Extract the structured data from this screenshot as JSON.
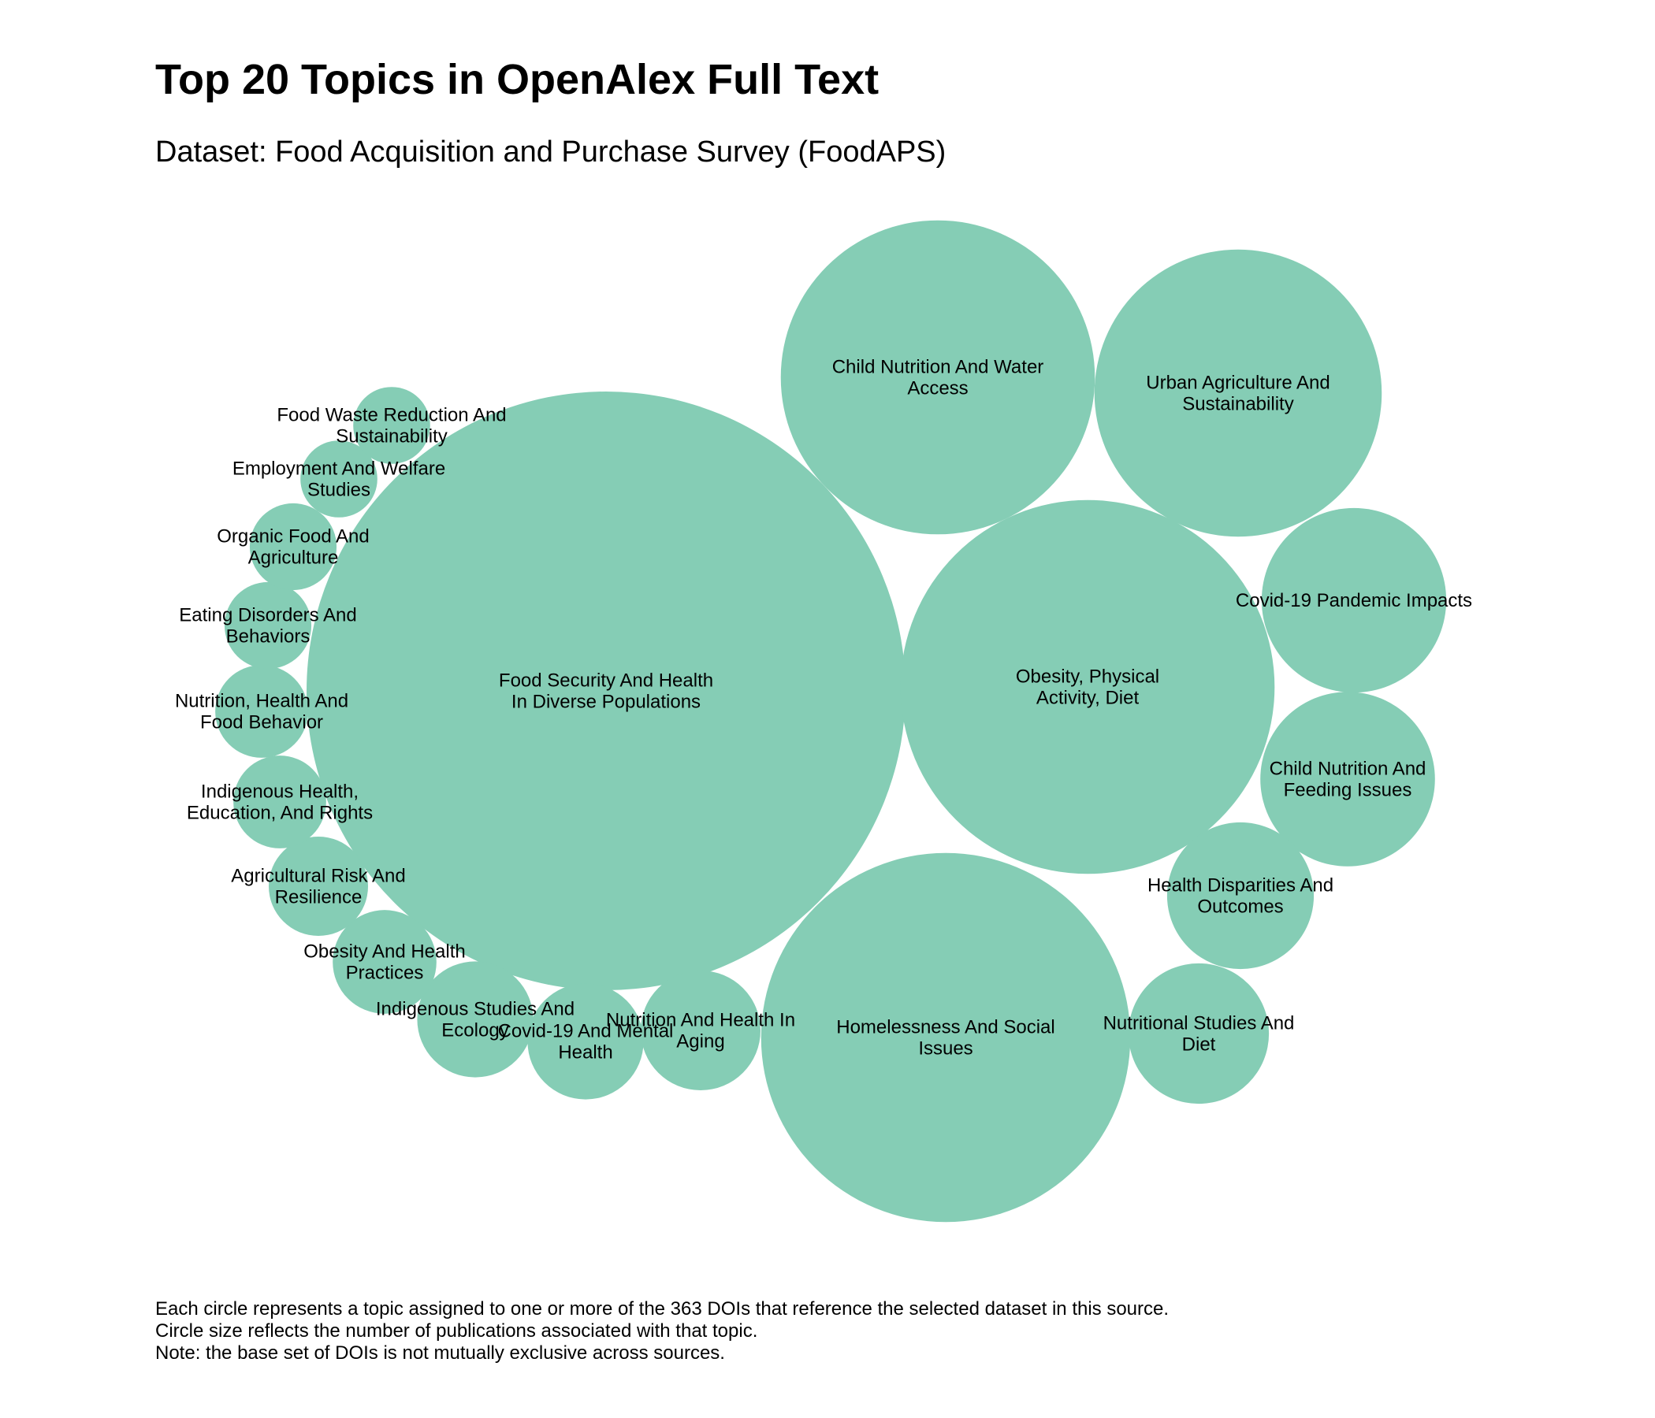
{
  "chart_data": {
    "type": "bubble",
    "title": "Top 20 Topics in OpenAlex Full Text",
    "subtitle": "Dataset: Food Acquisition and Purchase Survey (FoodAPS)",
    "caption": [
      "Each circle represents a topic assigned to one or more of the 363 DOIs that reference the selected dataset in this source.",
      "Circle size reflects the number of publications associated with that topic.",
      "Note: the base set of DOIs is not mutually exclusive across sources."
    ],
    "bubble_color": "#85cdb5",
    "topics": [
      {
        "label": "Food Security And Health In Diverse Populations",
        "lines": [
          "Food Security And Health",
          "In Diverse Populations"
        ],
        "value": 200
      },
      {
        "label": "Homelessness And Social Issues",
        "lines": [
          "Homelessness And Social",
          "Issues"
        ],
        "value": 76
      },
      {
        "label": "Obesity, Physical Activity, Diet",
        "lines": [
          "Obesity, Physical",
          "Activity, Diet"
        ],
        "value": 78
      },
      {
        "label": "Child Nutrition And Water Access",
        "lines": [
          "Child Nutrition And Water",
          "Access"
        ],
        "value": 55
      },
      {
        "label": "Urban Agriculture And Sustainability",
        "lines": [
          "Urban Agriculture And",
          "Sustainability"
        ],
        "value": 46
      },
      {
        "label": "Covid-19 Pandemic Impacts",
        "lines": [
          "Covid-19 Pandemic Impacts"
        ],
        "value": 19
      },
      {
        "label": "Child Nutrition And Feeding Issues",
        "lines": [
          "Child Nutrition And",
          "Feeding Issues"
        ],
        "value": 17
      },
      {
        "label": "Health Disparities And Outcomes",
        "lines": [
          "Health Disparities And",
          "Outcomes"
        ],
        "value": 12
      },
      {
        "label": "Nutritional Studies And Diet",
        "lines": [
          "Nutritional Studies And",
          "Diet"
        ],
        "value": 11
      },
      {
        "label": "Nutrition And Health In Aging",
        "lines": [
          "Nutrition And Health In",
          "Aging"
        ],
        "value": 8
      },
      {
        "label": "Covid-19 And Mental Health",
        "lines": [
          "Covid-19 And Mental",
          "Health"
        ],
        "value": 7.5
      },
      {
        "label": "Indigenous Studies And Ecology",
        "lines": [
          "Indigenous Studies And",
          "Ecology"
        ],
        "value": 7.5
      },
      {
        "label": "Obesity And Health Practices",
        "lines": [
          "Obesity And Health",
          "Practices"
        ],
        "value": 6
      },
      {
        "label": "Agricultural Risk And Resilience",
        "lines": [
          "Agricultural Risk And",
          "Resilience"
        ],
        "value": 5.5
      },
      {
        "label": "Indigenous Health, Education, And Rights",
        "lines": [
          "Indigenous Health,",
          "Education, And Rights"
        ],
        "value": 4.8
      },
      {
        "label": "Nutrition, Health And Food Behavior",
        "lines": [
          "Nutrition, Health And",
          "Food Behavior"
        ],
        "value": 4.8
      },
      {
        "label": "Eating Disorders And Behaviors",
        "lines": [
          "Eating Disorders And",
          "Behaviors"
        ],
        "value": 4.2
      },
      {
        "label": "Organic Food And Agriculture",
        "lines": [
          "Organic Food And",
          "Agriculture"
        ],
        "value": 4.2
      },
      {
        "label": "Employment And Welfare Studies",
        "lines": [
          "Employment And Welfare",
          "Studies"
        ],
        "value": 3.3
      },
      {
        "label": "Food Waste Reduction And Sustainability",
        "lines": [
          "Food Waste Reduction And",
          "Sustainability"
        ],
        "value": 3.3
      }
    ]
  }
}
